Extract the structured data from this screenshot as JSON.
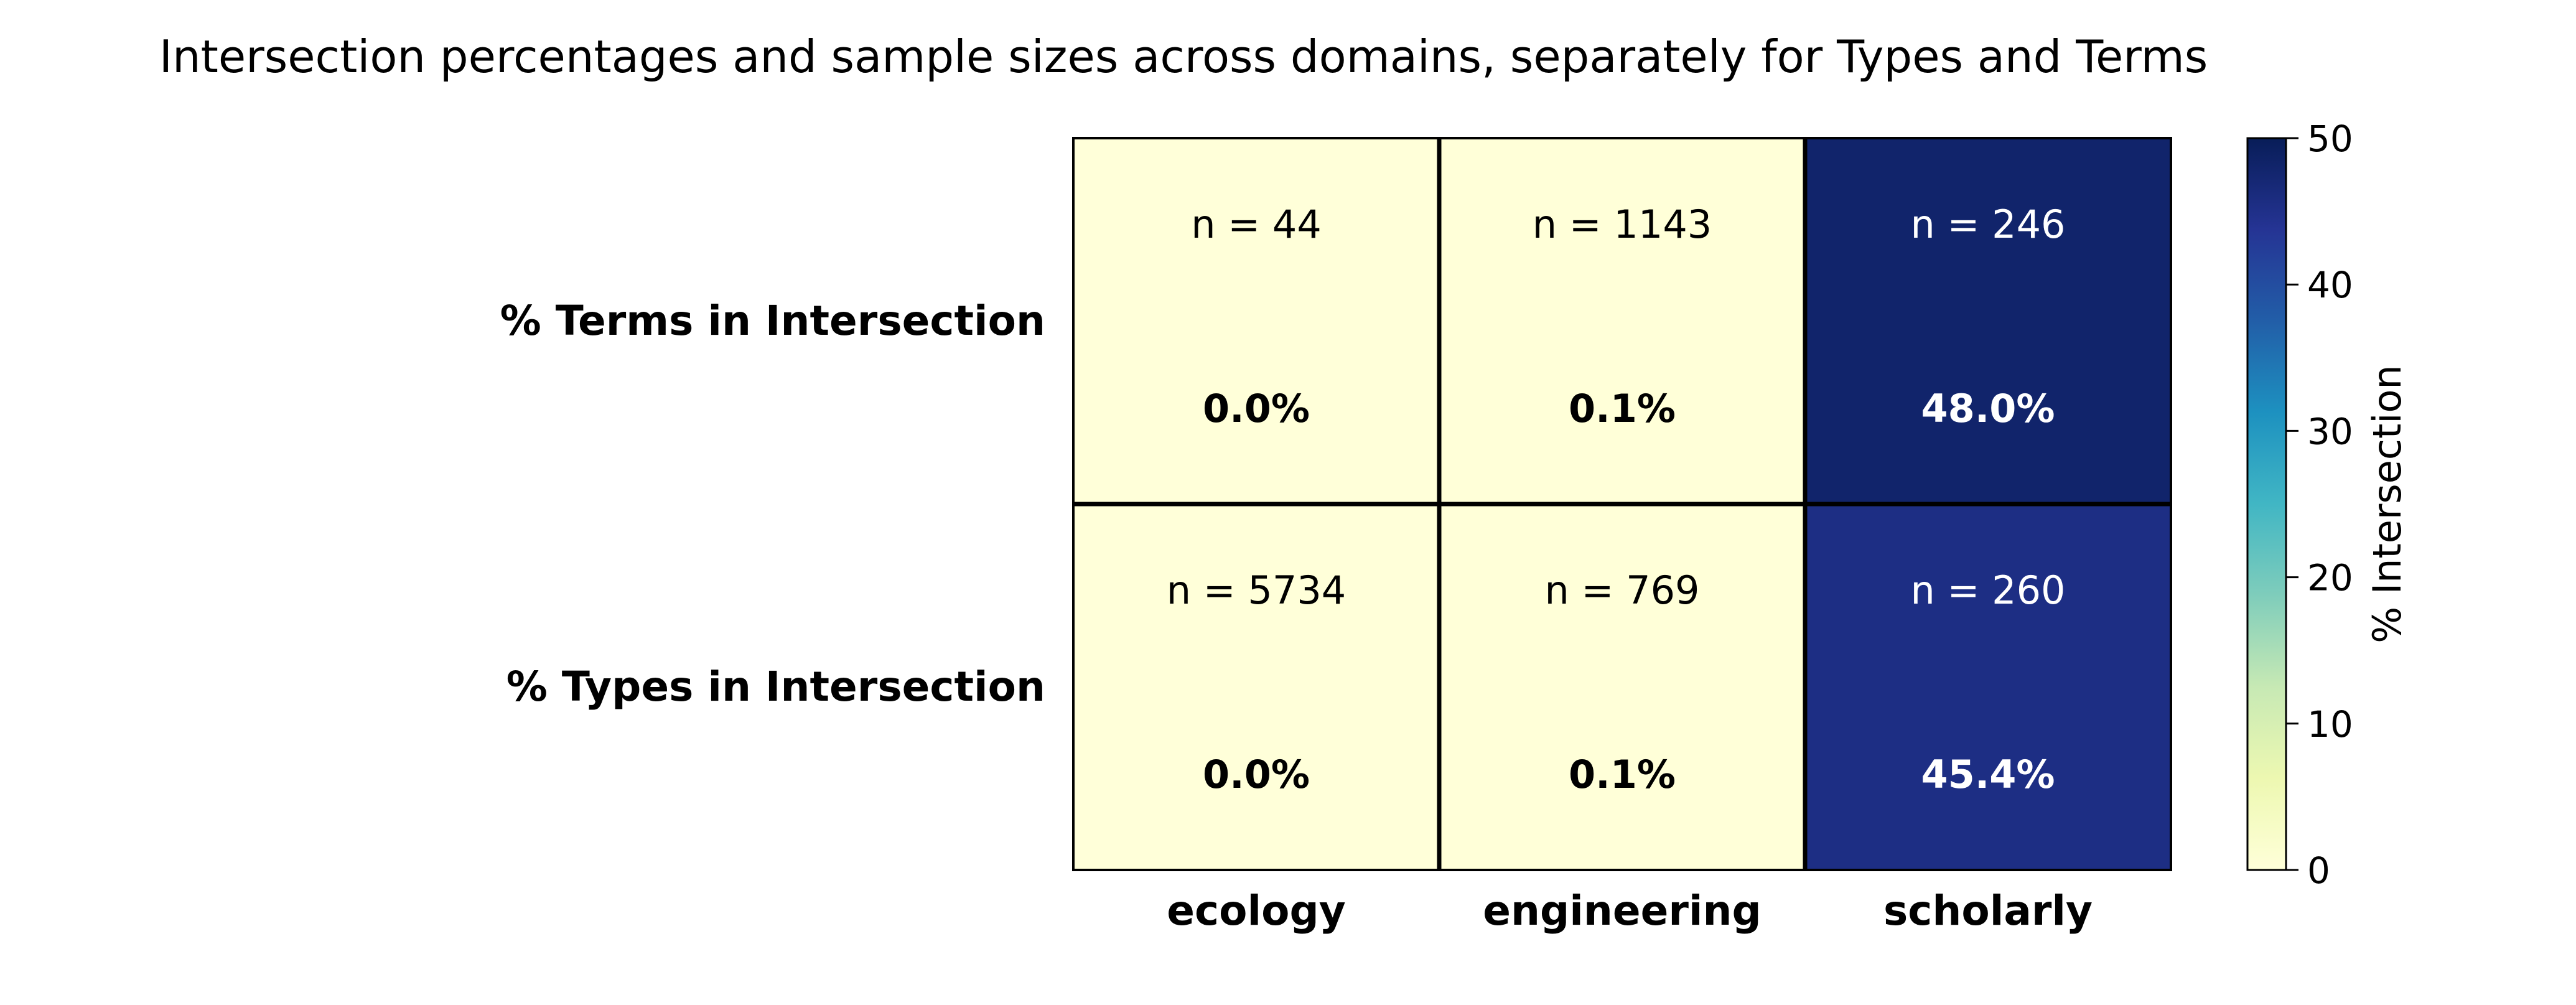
{
  "chart_data": {
    "type": "heatmap",
    "title": "Intersection percentages and sample sizes across domains, separately for Types and Terms",
    "columns": [
      "ecology",
      "engineering",
      "scholarly"
    ],
    "rows": [
      "% Terms in Intersection",
      "% Types in Intersection"
    ],
    "values": [
      [
        0.0,
        0.1,
        48.0
      ],
      [
        0.0,
        0.1,
        45.4
      ]
    ],
    "value_labels": [
      [
        "0.0%",
        "0.1%",
        "48.0%"
      ],
      [
        "0.0%",
        "0.1%",
        "45.4%"
      ]
    ],
    "n_labels": [
      [
        "n = 44",
        "n = 1143",
        "n = 246"
      ],
      [
        "n = 5734",
        "n = 769",
        "n = 260"
      ]
    ],
    "colorbar": {
      "label": "% Intersection",
      "range": [
        0,
        50
      ],
      "ticks": [
        "0",
        "10",
        "20",
        "30",
        "40",
        "50"
      ],
      "colormap": "YlGnBu",
      "stops": [
        "#ffffd9",
        "#edf8b1",
        "#c7e9b4",
        "#7fcdbb",
        "#41b6c4",
        "#1d91c0",
        "#225ea8",
        "#253494",
        "#081d58"
      ]
    }
  }
}
